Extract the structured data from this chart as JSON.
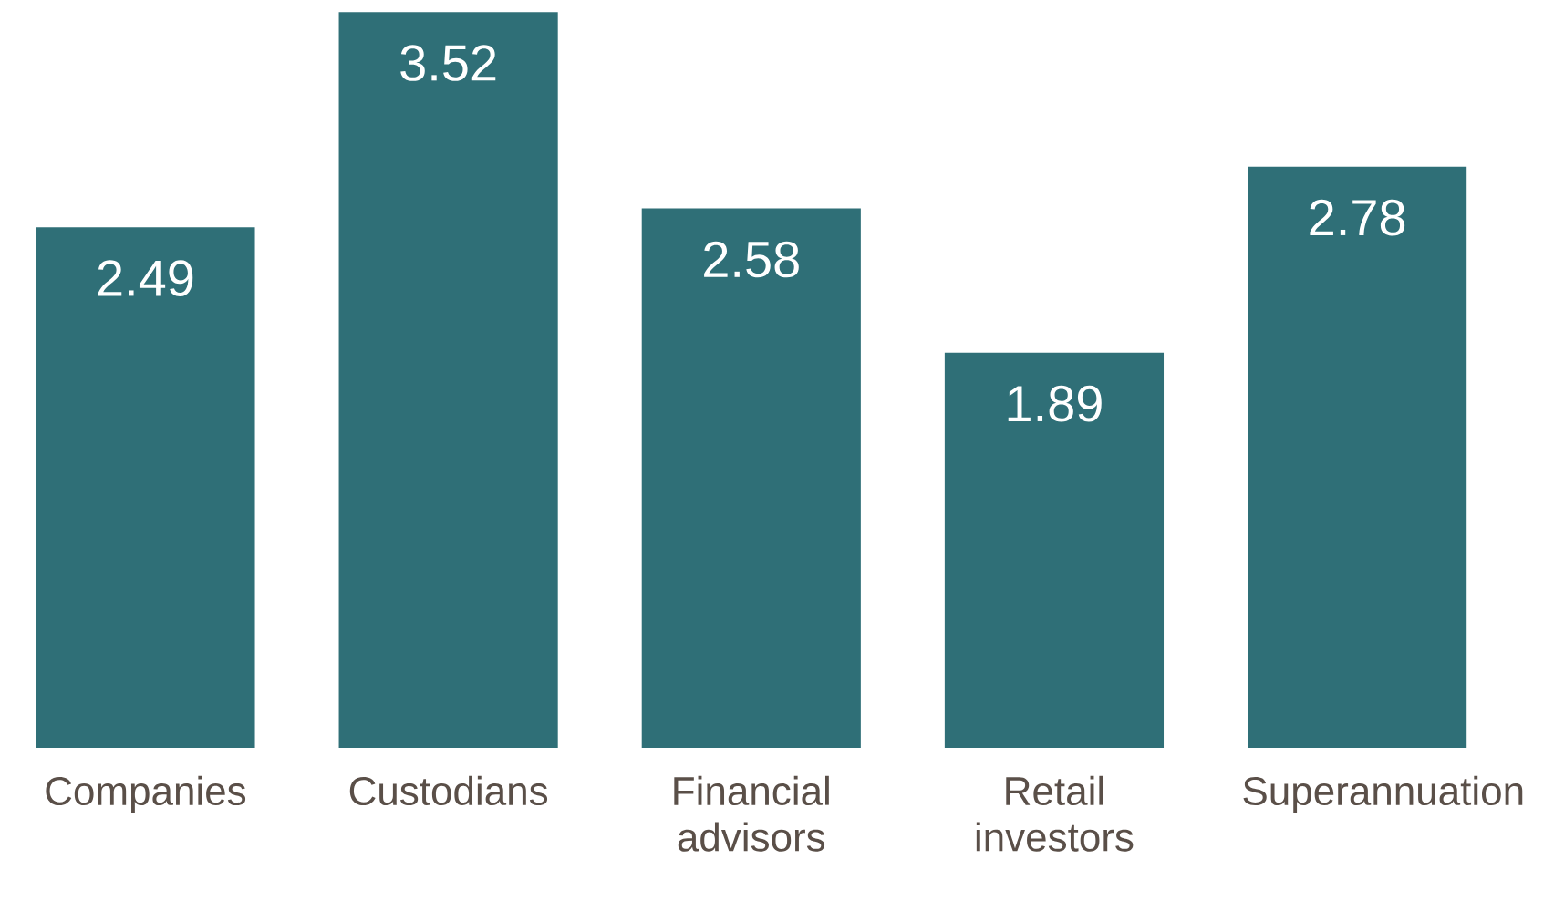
{
  "chart_data": {
    "type": "bar",
    "categories": [
      "Companies",
      "Custodians",
      "Financial advisors",
      "Retail investors",
      "Superannuation"
    ],
    "values": [
      2.49,
      3.52,
      2.58,
      1.89,
      2.78
    ],
    "color": "#2f6f77",
    "data_labels": true
  }
}
